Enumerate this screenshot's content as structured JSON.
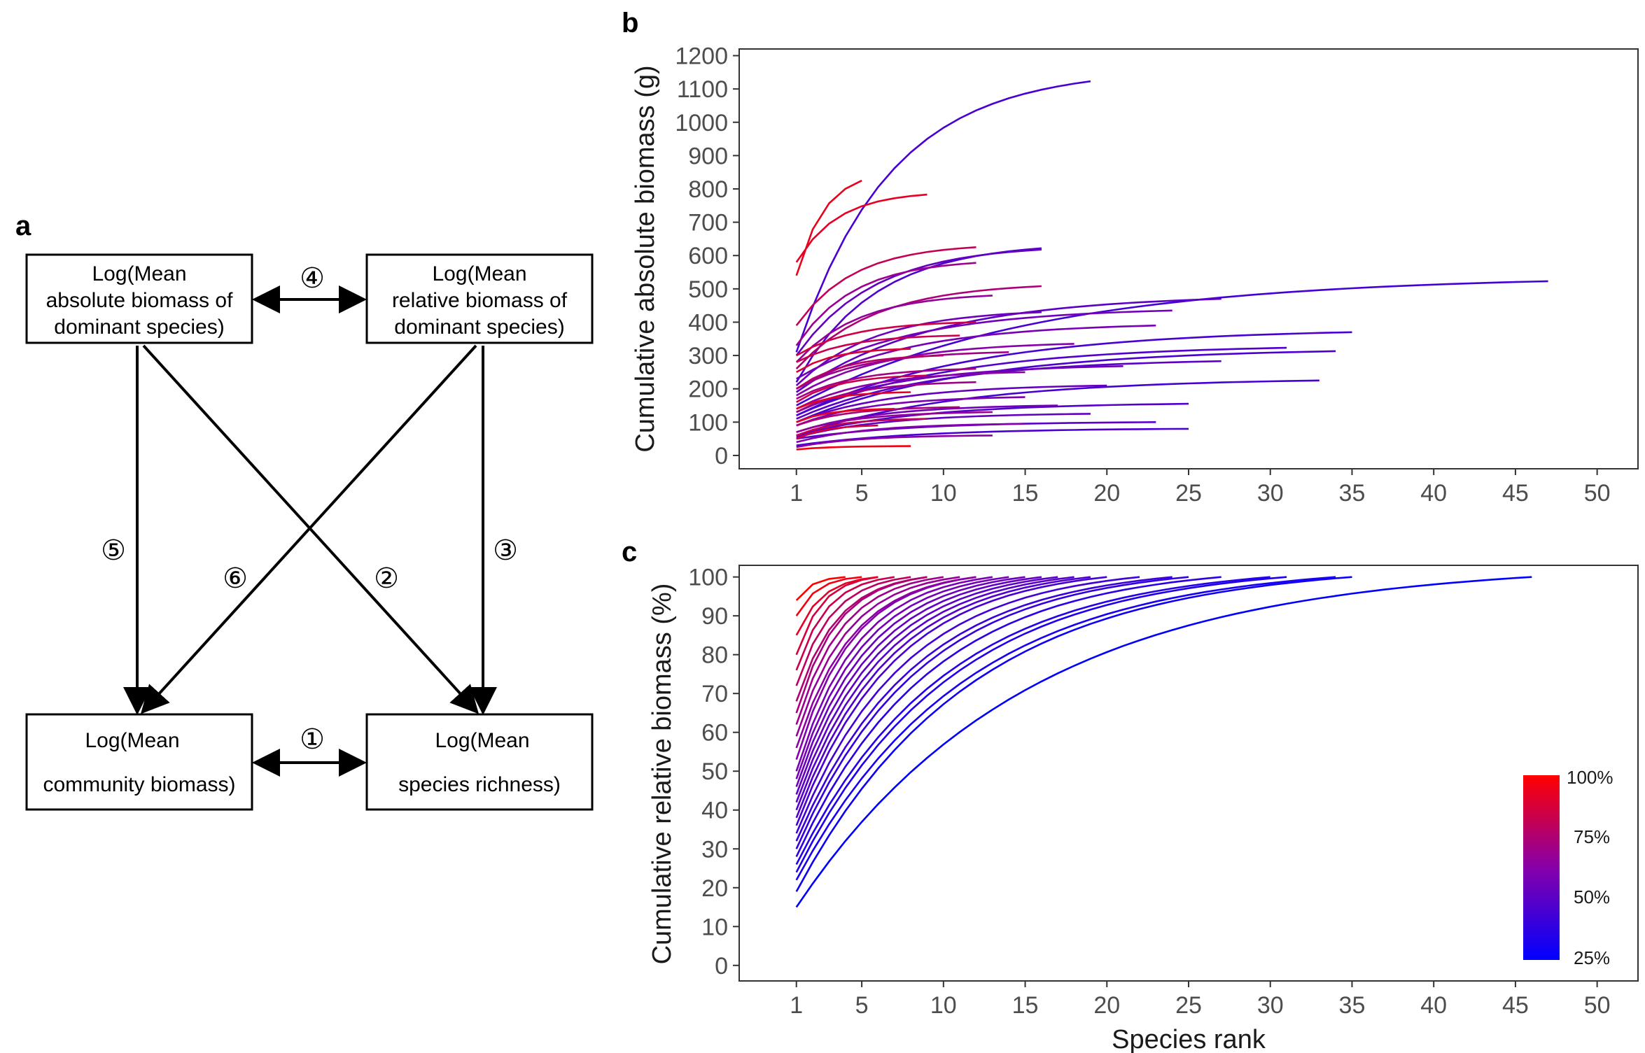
{
  "panels": {
    "a": "a",
    "b": "b",
    "c": "c"
  },
  "diagram": {
    "boxes": {
      "abs_dom": [
        "Log(Mean",
        "absolute biomass of",
        "dominant species)"
      ],
      "rel_dom": [
        "Log(Mean",
        "relative biomass of",
        "dominant species)"
      ],
      "community": [
        "Log(Mean",
        "community biomass)"
      ],
      "richness": [
        "Log(Mean",
        "species richness)"
      ]
    },
    "path_labels": {
      "p1": "①",
      "p2": "②",
      "p3": "③",
      "p4": "④",
      "p5": "⑤",
      "p6": "⑥"
    }
  },
  "colors": {
    "low": "#0000ff",
    "mid": "#8800aa",
    "high": "#ff0000",
    "axis": "#333333",
    "tick_text": "#4d4d4d"
  },
  "chart_data": [
    {
      "panel": "b",
      "type": "line",
      "ylabel": "Cumulative absolute biomass (g)",
      "xlabel": "",
      "x_ticks": [
        1,
        5,
        10,
        15,
        20,
        25,
        30,
        35,
        40,
        45,
        50
      ],
      "y_ticks": [
        0,
        100,
        200,
        300,
        400,
        500,
        600,
        700,
        800,
        900,
        1000,
        1100,
        1200
      ],
      "xlim": [
        -2.5,
        52.5
      ],
      "ylim": [
        -40,
        1220
      ],
      "grid": false,
      "series": [
        {
          "n": 19,
          "start": 310,
          "end": 1123,
          "dom": 0.27
        },
        {
          "n": 5,
          "start": 540,
          "end": 825,
          "dom": 0.92
        },
        {
          "n": 9,
          "start": 580,
          "end": 783,
          "dom": 0.9
        },
        {
          "n": 16,
          "start": 220,
          "end": 622,
          "dom": 0.3
        },
        {
          "n": 16,
          "start": 300,
          "end": 618,
          "dom": 0.36
        },
        {
          "n": 12,
          "start": 390,
          "end": 625,
          "dom": 0.75
        },
        {
          "n": 12,
          "start": 330,
          "end": 578,
          "dom": 0.58
        },
        {
          "n": 47,
          "start": 150,
          "end": 523,
          "dom": 0.25
        },
        {
          "n": 16,
          "start": 260,
          "end": 508,
          "dom": 0.66
        },
        {
          "n": 13,
          "start": 280,
          "end": 480,
          "dom": 0.55
        },
        {
          "n": 27,
          "start": 190,
          "end": 470,
          "dom": 0.34
        },
        {
          "n": 24,
          "start": 230,
          "end": 435,
          "dom": 0.42
        },
        {
          "n": 16,
          "start": 210,
          "end": 430,
          "dom": 0.4
        },
        {
          "n": 23,
          "start": 200,
          "end": 390,
          "dom": 0.44
        },
        {
          "n": 35,
          "start": 120,
          "end": 370,
          "dom": 0.27
        },
        {
          "n": 12,
          "start": 300,
          "end": 400,
          "dom": 0.8
        },
        {
          "n": 11,
          "start": 280,
          "end": 360,
          "dom": 0.77
        },
        {
          "n": 31,
          "start": 120,
          "end": 323,
          "dom": 0.3
        },
        {
          "n": 34,
          "start": 100,
          "end": 313,
          "dom": 0.28
        },
        {
          "n": 18,
          "start": 180,
          "end": 335,
          "dom": 0.5
        },
        {
          "n": 14,
          "start": 200,
          "end": 310,
          "dom": 0.6
        },
        {
          "n": 27,
          "start": 110,
          "end": 283,
          "dom": 0.33
        },
        {
          "n": 8,
          "start": 250,
          "end": 320,
          "dom": 0.85
        },
        {
          "n": 10,
          "start": 200,
          "end": 300,
          "dom": 0.7
        },
        {
          "n": 21,
          "start": 130,
          "end": 268,
          "dom": 0.4
        },
        {
          "n": 12,
          "start": 170,
          "end": 260,
          "dom": 0.62
        },
        {
          "n": 15,
          "start": 140,
          "end": 250,
          "dom": 0.5
        },
        {
          "n": 33,
          "start": 60,
          "end": 225,
          "dom": 0.26
        },
        {
          "n": 9,
          "start": 160,
          "end": 240,
          "dom": 0.78
        },
        {
          "n": 12,
          "start": 130,
          "end": 220,
          "dom": 0.6
        },
        {
          "n": 20,
          "start": 100,
          "end": 210,
          "dom": 0.38
        },
        {
          "n": 8,
          "start": 140,
          "end": 190,
          "dom": 0.88
        },
        {
          "n": 15,
          "start": 90,
          "end": 175,
          "dom": 0.46
        },
        {
          "n": 25,
          "start": 60,
          "end": 155,
          "dom": 0.3
        },
        {
          "n": 17,
          "start": 70,
          "end": 150,
          "dom": 0.42
        },
        {
          "n": 11,
          "start": 90,
          "end": 145,
          "dom": 0.64
        },
        {
          "n": 7,
          "start": 100,
          "end": 140,
          "dom": 0.9
        },
        {
          "n": 13,
          "start": 70,
          "end": 130,
          "dom": 0.56
        },
        {
          "n": 19,
          "start": 55,
          "end": 125,
          "dom": 0.36
        },
        {
          "n": 23,
          "start": 50,
          "end": 100,
          "dom": 0.33
        },
        {
          "n": 9,
          "start": 60,
          "end": 110,
          "dom": 0.75
        },
        {
          "n": 15,
          "start": 40,
          "end": 95,
          "dom": 0.48
        },
        {
          "n": 25,
          "start": 30,
          "end": 80,
          "dom": 0.28
        },
        {
          "n": 6,
          "start": 50,
          "end": 90,
          "dom": 0.82
        },
        {
          "n": 13,
          "start": 25,
          "end": 60,
          "dom": 0.52
        },
        {
          "n": 8,
          "start": 18,
          "end": 28,
          "dom": 0.95
        }
      ]
    },
    {
      "panel": "c",
      "type": "line",
      "ylabel": "Cumulative relative biomass (%)",
      "xlabel": "Species rank",
      "x_ticks": [
        1,
        5,
        10,
        15,
        20,
        25,
        30,
        35,
        40,
        45,
        50
      ],
      "y_ticks": [
        0,
        10,
        20,
        30,
        40,
        50,
        60,
        70,
        80,
        90,
        100
      ],
      "xlim": [
        -2.5,
        52.5
      ],
      "ylim": [
        -4,
        103
      ],
      "grid": false,
      "legend": {
        "position": "bottom-right",
        "labels": [
          "100%",
          "75%",
          "50%",
          "25%"
        ]
      },
      "series": [
        {
          "n": 46,
          "start": 15
        },
        {
          "n": 35,
          "start": 19
        },
        {
          "n": 34,
          "start": 22
        },
        {
          "n": 31,
          "start": 24
        },
        {
          "n": 30,
          "start": 26
        },
        {
          "n": 27,
          "start": 28
        },
        {
          "n": 25,
          "start": 30
        },
        {
          "n": 24,
          "start": 32
        },
        {
          "n": 22,
          "start": 34
        },
        {
          "n": 20,
          "start": 36
        },
        {
          "n": 19,
          "start": 38
        },
        {
          "n": 18,
          "start": 40
        },
        {
          "n": 17,
          "start": 42
        },
        {
          "n": 16,
          "start": 44
        },
        {
          "n": 15,
          "start": 46
        },
        {
          "n": 14,
          "start": 48
        },
        {
          "n": 13,
          "start": 50
        },
        {
          "n": 12,
          "start": 53
        },
        {
          "n": 12,
          "start": 56
        },
        {
          "n": 11,
          "start": 59
        },
        {
          "n": 10,
          "start": 62
        },
        {
          "n": 9,
          "start": 65
        },
        {
          "n": 9,
          "start": 68
        },
        {
          "n": 8,
          "start": 72
        },
        {
          "n": 7,
          "start": 76
        },
        {
          "n": 6,
          "start": 80
        },
        {
          "n": 6,
          "start": 85
        },
        {
          "n": 5,
          "start": 90
        },
        {
          "n": 4,
          "start": 94
        }
      ]
    }
  ]
}
